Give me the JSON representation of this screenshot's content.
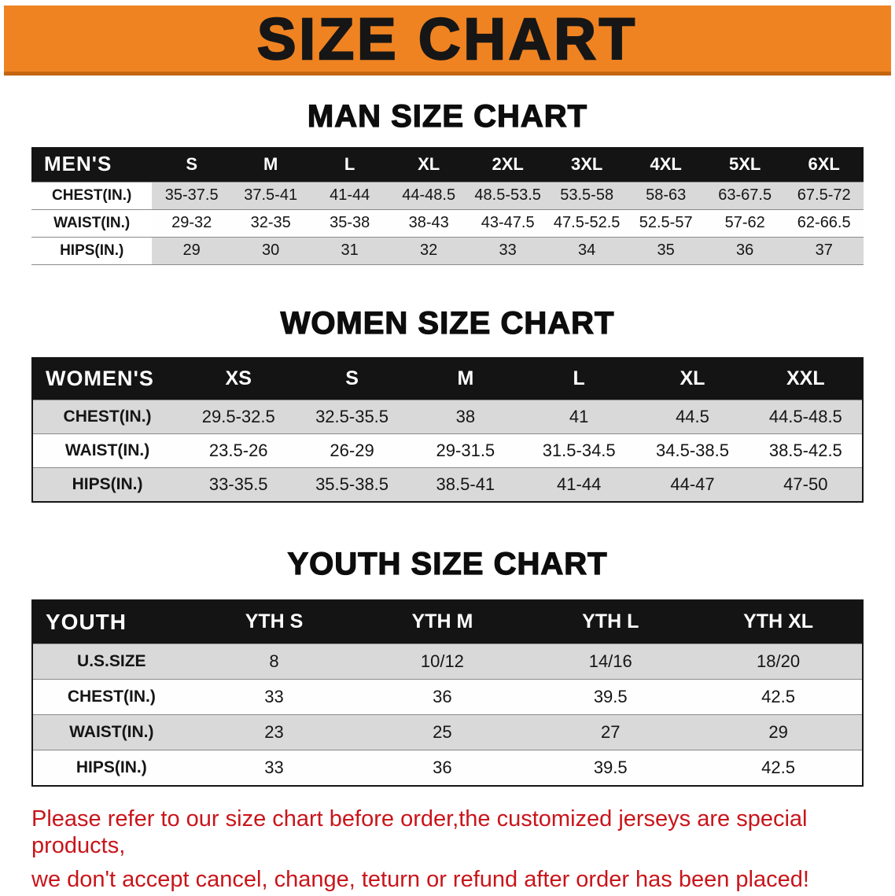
{
  "banner": {
    "title": "SIZE CHART"
  },
  "sections": [
    {
      "heading": "MAN SIZE CHART",
      "table": {
        "header": [
          "MEN'S",
          "S",
          "M",
          "L",
          "XL",
          "2XL",
          "3XL",
          "4XL",
          "5XL",
          "6XL"
        ],
        "rows": [
          [
            "CHEST(IN.)",
            "35-37.5",
            "37.5-41",
            "41-44",
            "44-48.5",
            "48.5-53.5",
            "53.5-58",
            "58-63",
            "63-67.5",
            "67.5-72"
          ],
          [
            "WAIST(IN.)",
            "29-32",
            "32-35",
            "35-38",
            "38-43",
            "43-47.5",
            "47.5-52.5",
            "52.5-57",
            "57-62",
            "62-66.5"
          ],
          [
            "HIPS(IN.)",
            "29",
            "30",
            "31",
            "32",
            "33",
            "34",
            "35",
            "36",
            "37"
          ]
        ]
      }
    },
    {
      "heading": "WOMEN SIZE CHART",
      "table": {
        "header": [
          "WOMEN'S",
          "XS",
          "S",
          "M",
          "L",
          "XL",
          "XXL"
        ],
        "rows": [
          [
            "CHEST(IN.)",
            "29.5-32.5",
            "32.5-35.5",
            "38",
            "41",
            "44.5",
            "44.5-48.5"
          ],
          [
            "WAIST(IN.)",
            "23.5-26",
            "26-29",
            "29-31.5",
            "31.5-34.5",
            "34.5-38.5",
            "38.5-42.5"
          ],
          [
            "HIPS(IN.)",
            "33-35.5",
            "35.5-38.5",
            "38.5-41",
            "41-44",
            "44-47",
            "47-50"
          ]
        ]
      }
    },
    {
      "heading": "YOUTH SIZE CHART",
      "table": {
        "header": [
          "YOUTH",
          "YTH S",
          "YTH M",
          "YTH L",
          "YTH XL"
        ],
        "rows": [
          [
            "U.S.SIZE",
            "8",
            "10/12",
            "14/16",
            "18/20"
          ],
          [
            "CHEST(IN.)",
            "33",
            "36",
            "39.5",
            "42.5"
          ],
          [
            "WAIST(IN.)",
            "23",
            "25",
            "27",
            "29"
          ],
          [
            "HIPS(IN.)",
            "33",
            "36",
            "39.5",
            "42.5"
          ]
        ]
      }
    }
  ],
  "disclaimer": {
    "lines": [
      "Please refer to our size chart before order,the customized jerseys are special products,",
      "we don't accept cancel, change, teturn or refund after order has been placed!"
    ]
  },
  "colors": {
    "banner_bg": "#ef8322",
    "banner_border": "#c4660e",
    "table_header_bg": "#141414",
    "row_gray": "#d9d9d9",
    "disclaimer_red": "#c8151b"
  }
}
